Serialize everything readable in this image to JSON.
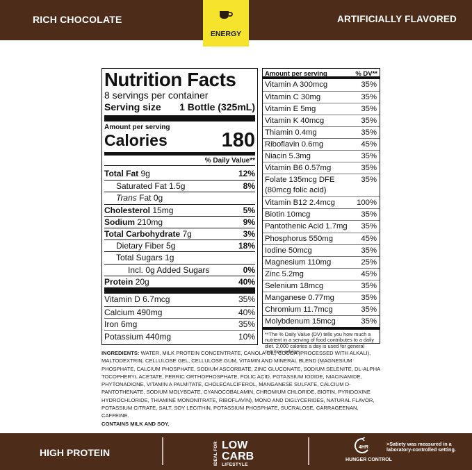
{
  "header": {
    "left_label": "RICH CHOCOLATE",
    "right_label": "ARTIFICIALLY FLAVORED",
    "badge_label": "ENERGY",
    "badge_icon": "coffee-cup-icon"
  },
  "nutrition": {
    "title": "Nutrition Facts",
    "servings": "8 servings per container",
    "serving_size_label": "Serving size",
    "serving_size_value": "1 Bottle (325mL)",
    "amount_per_serving": "Amount per serving",
    "calories_label": "Calories",
    "calories_value": "180",
    "dv_header": "% Daily Value**",
    "rows": [
      {
        "name": "Total Fat",
        "amount": "9g",
        "dv": "12%"
      },
      {
        "name": "Saturated Fat",
        "amount": "1.5g",
        "dv": "8%"
      },
      {
        "name": "Trans",
        "amount": "Fat 0g",
        "dv": ""
      },
      {
        "name": "Cholesterol",
        "amount": "15mg",
        "dv": "5%"
      },
      {
        "name": "Sodium",
        "amount": "210mg",
        "dv": "9%"
      },
      {
        "name": "Total Carbohydrate",
        "amount": "7g",
        "dv": "3%"
      },
      {
        "name": "Dietary Fiber",
        "amount": "5g",
        "dv": "18%"
      },
      {
        "name": "Total Sugars",
        "amount": "1g",
        "dv": ""
      },
      {
        "name": "Incl. 0g Added Sugars",
        "amount": "",
        "dv": "0%"
      },
      {
        "name": "Protein",
        "amount": "20g",
        "dv": "40%"
      }
    ],
    "vitamins": [
      {
        "text": "Vitamin D 6.7mcg",
        "dv": "35%"
      },
      {
        "text": "Calcium 490mg",
        "dv": "40%"
      },
      {
        "text": "Iron 6mg",
        "dv": "35%"
      },
      {
        "text": "Potassium 440mg",
        "dv": "10%"
      }
    ]
  },
  "vitamin_panel": {
    "header_left": "Amount per serving",
    "header_right": "% DV**",
    "rows": [
      {
        "text": "Vitamin A 300mcg",
        "dv": "35%"
      },
      {
        "text": "Vitamin C 30mg",
        "dv": "35%"
      },
      {
        "text": "Vitamin E 5mg",
        "dv": "35%"
      },
      {
        "text": "Vitamin K 40mcg",
        "dv": "35%"
      },
      {
        "text": "Thiamin 0.4mg",
        "dv": "35%"
      },
      {
        "text": "Riboflavin 0.6mg",
        "dv": "45%"
      },
      {
        "text": "Niacin 5.3mg",
        "dv": "35%"
      },
      {
        "text": "Vitamin B6 0.57mg",
        "dv": "35%"
      },
      {
        "text": "Folate 135mcg DFE\n      (80mcg folic acid)",
        "dv": "35%"
      },
      {
        "text": "Vitamin B12 2.4mcg",
        "dv": "100%"
      },
      {
        "text": "Biotin 10mcg",
        "dv": "35%"
      },
      {
        "text": "Pantothenic Acid 1.7mg",
        "dv": "35%"
      },
      {
        "text": "Phosphorus 550mg",
        "dv": "45%"
      },
      {
        "text": "Iodine 50mcg",
        "dv": "35%"
      },
      {
        "text": "Magnesium 110mg",
        "dv": "25%"
      },
      {
        "text": "Zinc 5.2mg",
        "dv": "45%"
      },
      {
        "text": "Selenium 18mcg",
        "dv": "35%"
      },
      {
        "text": "Manganese 0.77mg",
        "dv": "35%"
      },
      {
        "text": "Chromium 11.7mcg",
        "dv": "35%"
      },
      {
        "text": "Molybdenum 15mcg",
        "dv": "35%"
      }
    ],
    "footnote": "**The % Daily Value (DV) tells you how much a nutrient in a serving of food contributes to a daily diet. 2,000 calories a day is used for general nutrition advice."
  },
  "ingredients": {
    "label": "INGREDIENTS:",
    "text": "WATER, MILK PROTEIN CONCENTRATE, CANOLA OIL, COCOA (PROCESSED WITH ALKALI), MALTODEXTRIN, CELLULOSE GEL, CELLULOSE GUM, VITAMIN AND MINERAL BLEND (MAGNESIUM PHOSPHATE, CALCIUM PHOSPHATE, SODIUM ASCORBATE, ZINC GLUCONATE, SODIUM SELENITE, DL-ALPHA TOCOPHERYL ACETATE, FERRIC ORTHOPHOSPHATE, FOLIC ACID, POTASSIUM IODIDE, NIACINAMIDE, PHYTONADIONE, VITAMIN A PALMITATE, CHOLECALCIFEROL, MANGANESE SULFATE, CALCIUM D-PANTOTHENATE, SODIUM MOLYBDATE, CYANOCOBALAMIN, CHROMIUM CHLORIDE, BIOTIN, PYRIDOXINE HYDROCHLORIDE, THIAMINE MONONITRATE, RIBOFLAVIN), MONO AND DIGLYCERIDES, NATURAL FLAVOR, POTASSIUM CITRATE, SALT, SOY LECITHIN, POTASSIUM PHOSPHATE, SUCRALOSE, CARRAGEENAN, CAFFEINE.",
    "contains": "CONTAINS MILK AND SOY."
  },
  "footer": {
    "high_protein": "HIGH PROTEIN",
    "ideal_for": "IDEAL FOR",
    "low": "LOW",
    "carb": "CARB",
    "lifestyle": "LIFESTYLE",
    "hunger_icon_text": "4HR",
    "hunger_control": "HUNGER CONTROL",
    "satiety_note": ">Satiety was measured in a laboratory-controlled setting."
  },
  "colors": {
    "brown": "#4e2c1a",
    "yellow": "#f6e32c"
  }
}
